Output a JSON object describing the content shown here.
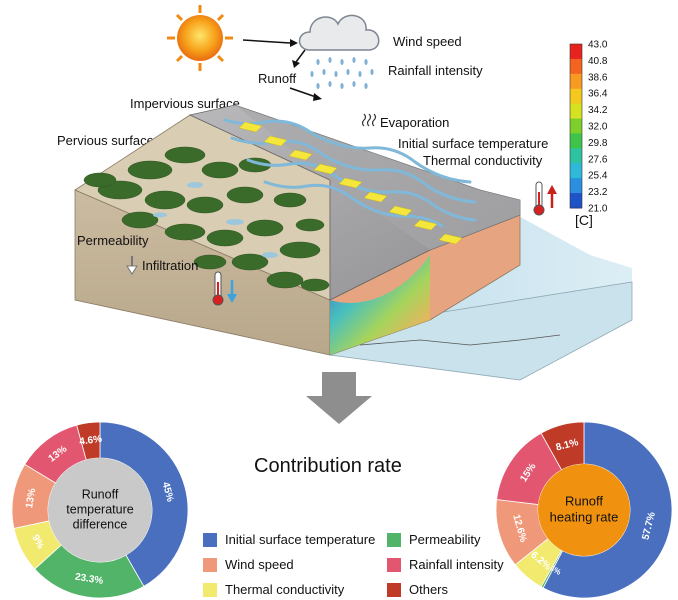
{
  "scene": {
    "labels": {
      "wind_speed": "Wind speed",
      "rainfall_intensity": "Rainfall intensity",
      "runoff": "Runoff",
      "impervious_surface": "Impervious surface",
      "evaporation": "Evaporation",
      "pervious_surface": "Pervious surface",
      "initial_surface_temperature": "Initial surface temperature",
      "thermal_conductivity": "Thermal conductivity",
      "permeability": "Permeability",
      "infiltration": "Infiltration"
    },
    "icons": [
      "sun-icon",
      "cloud-icon",
      "rain-icon",
      "evaporation-icon",
      "thermometer-icon",
      "down-arrow-icon"
    ]
  },
  "colorbar": {
    "ticks": [
      "43.0",
      "40.8",
      "38.6",
      "36.4",
      "34.2",
      "32.0",
      "29.8",
      "27.6",
      "25.4",
      "23.2",
      "21.0"
    ],
    "unit": "[C]",
    "colors": [
      "#e8231f",
      "#f5641e",
      "#f79a22",
      "#f5c81f",
      "#d6e21f",
      "#7fcf2c",
      "#3fc34b",
      "#2ec3a0",
      "#2fb8d9",
      "#2a8fe0",
      "#1f52c8"
    ]
  },
  "main_title": "Contribution rate",
  "chart_data": [
    {
      "type": "pie",
      "center_label": [
        "Runoff",
        "temperature",
        "difference"
      ],
      "slices": [
        {
          "name": "Initial surface temperature",
          "value": 45,
          "label": "45%",
          "color": "#4a6fbf"
        },
        {
          "name": "Permeability",
          "value": 23.3,
          "label": "23.3%",
          "color": "#52b468"
        },
        {
          "name": "Thermal conductivity",
          "value": 9,
          "label": "9%",
          "color": "#f1ea6e"
        },
        {
          "name": "Wind speed",
          "value": 13,
          "label": "13%",
          "color": "#f0997a"
        },
        {
          "name": "Rainfall intensity",
          "value": 13,
          "label": "13%",
          "color": "#e2566f"
        },
        {
          "name": "Others",
          "value": 4.6,
          "label": "4.6%",
          "color": "#c03a28"
        }
      ],
      "hole_color": "#c9c9c9"
    },
    {
      "type": "pie",
      "center_label": [
        "Runoff",
        "heating rate"
      ],
      "slices": [
        {
          "name": "Initial surface temperature",
          "value": 57.7,
          "label": "57.7%",
          "color": "#4a6fbf"
        },
        {
          "name": "Permeability",
          "value": 0.4,
          "label": "0.4%",
          "color": "#52b468"
        },
        {
          "name": "Thermal conductivity",
          "value": 6.2,
          "label": "6.2%",
          "color": "#f1ea6e"
        },
        {
          "name": "Wind speed",
          "value": 12.6,
          "label": "12.6%",
          "color": "#f0997a"
        },
        {
          "name": "Rainfall intensity",
          "value": 15,
          "label": "15%",
          "color": "#e2566f"
        },
        {
          "name": "Others",
          "value": 8.1,
          "label": "8.1%",
          "color": "#c03a28"
        }
      ],
      "hole_color": "#f0920f"
    }
  ],
  "legend": [
    {
      "name": "Initial surface temperature",
      "color": "#4a6fbf"
    },
    {
      "name": "Permeability",
      "color": "#52b468"
    },
    {
      "name": "Wind speed",
      "color": "#f0997a"
    },
    {
      "name": "Rainfall intensity",
      "color": "#e2566f"
    },
    {
      "name": "Thermal conductivity",
      "color": "#f1ea6e"
    },
    {
      "name": "Others",
      "color": "#c03a28"
    }
  ]
}
